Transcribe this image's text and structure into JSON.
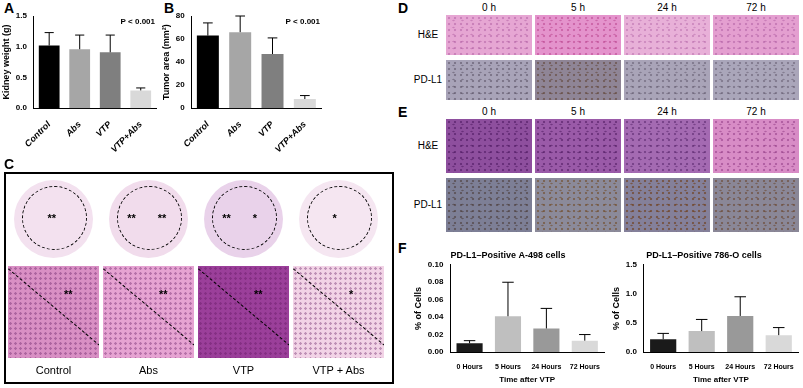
{
  "chart_data": [
    {
      "panel": "A",
      "type": "bar",
      "y_label": "Kidney weight (g)",
      "categories": [
        "Control",
        "Abs",
        "VTP",
        "VTP+Abs"
      ],
      "values": [
        1.02,
        0.96,
        0.91,
        0.29
      ],
      "errors": [
        0.21,
        0.23,
        0.28,
        0.04
      ],
      "colors": [
        "#000000",
        "#a6a6a6",
        "#7f7f7f",
        "#d9d9d9"
      ],
      "ylim": [
        0,
        1.5
      ],
      "yticks": [
        {
          "value": 0,
          "label": "0.0"
        },
        {
          "value": 0.5,
          "label": "0.5"
        },
        {
          "value": 1,
          "label": "1.0"
        },
        {
          "value": 1.5,
          "label": "1.5"
        }
      ],
      "grid": false,
      "annotation": "P < 0.001"
    },
    {
      "panel": "B",
      "type": "bar",
      "y_label": "Tumor area (mm²)",
      "categories": [
        "Control",
        "Abs",
        "VTP",
        "VTP+Abs"
      ],
      "values": [
        63,
        66,
        47,
        8
      ],
      "errors": [
        11,
        14,
        14,
        3
      ],
      "colors": [
        "#000000",
        "#a6a6a6",
        "#7f7f7f",
        "#d9d9d9"
      ],
      "ylim": [
        0,
        80
      ],
      "yticks": [
        0,
        20,
        40,
        60,
        80
      ],
      "grid": false,
      "annotation": "P < 0.001"
    },
    {
      "panel": "F",
      "type": "bar",
      "title": "PD-L1–Positive A-498 cells",
      "x_label": "Time after VTP",
      "y_label": "% of Cells",
      "categories": [
        "0 Hours",
        "5 Hours",
        "24 Hours",
        "72 Hours"
      ],
      "values": [
        0.01,
        0.041,
        0.027,
        0.013
      ],
      "errors": [
        0.003,
        0.039,
        0.023,
        0.007
      ],
      "colors": [
        "#1a1a1a",
        "#bfbfbf",
        "#999999",
        "#d9d9d9"
      ],
      "ylim": [
        0,
        0.1
      ],
      "yticks": [
        {
          "value": 0,
          "label": "0.00"
        },
        {
          "value": 0.02,
          "label": "0.02"
        },
        {
          "value": 0.04,
          "label": "0.04"
        },
        {
          "value": 0.06,
          "label": "0.06"
        },
        {
          "value": 0.08,
          "label": "0.08"
        },
        {
          "value": 0.1,
          "label": "0.10"
        }
      ],
      "grid": false
    },
    {
      "type": "bar",
      "title": "PD-L1–Positive 786-O cells",
      "x_label": "Time after VTP",
      "y_label": "% of Cells",
      "categories": [
        "0 Hours",
        "5 Hours",
        "24 Hours",
        "72 Hours"
      ],
      "values": [
        0.22,
        0.36,
        0.62,
        0.29
      ],
      "errors": [
        0.1,
        0.2,
        0.33,
        0.13
      ],
      "colors": [
        "#1a1a1a",
        "#bfbfbf",
        "#999999",
        "#d9d9d9"
      ],
      "ylim": [
        0,
        1.5
      ],
      "yticks": [
        {
          "value": 0,
          "label": "0.0"
        },
        {
          "value": 0.5,
          "label": "0.5"
        },
        {
          "value": 1,
          "label": "1.0"
        },
        {
          "value": 1.5,
          "label": "1.5"
        }
      ],
      "grid": false
    }
  ],
  "image_panels": {
    "C": {
      "panel": "C",
      "columns": [
        "Control",
        "Abs",
        "VTP",
        "VTP + Abs"
      ],
      "top_marks": [
        [
          "**"
        ],
        [
          "**",
          "**"
        ],
        [
          "**",
          "*"
        ],
        [
          "*"
        ]
      ],
      "bottom_marks": [
        [
          "**"
        ],
        [
          "**"
        ],
        [
          "**"
        ],
        [
          "*"
        ]
      ]
    },
    "D": {
      "panel": "D",
      "columns": [
        "0 h",
        "5 h",
        "24 h",
        "72 h"
      ],
      "rows": [
        "H&E",
        "PD-L1"
      ]
    },
    "E": {
      "panel": "E",
      "columns": [
        "0 h",
        "5 h",
        "24 h",
        "72 h"
      ],
      "rows": [
        "H&E",
        "PD-L1"
      ]
    }
  }
}
